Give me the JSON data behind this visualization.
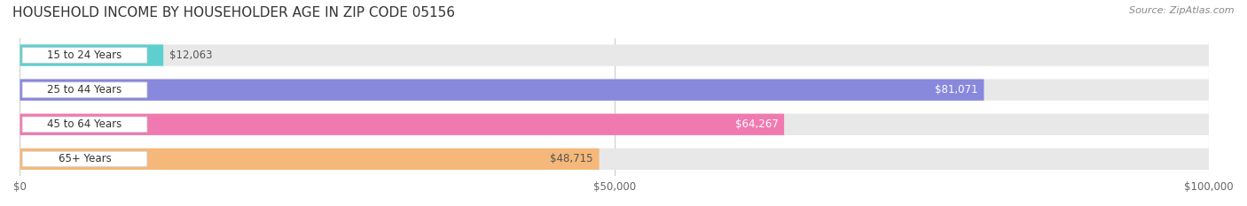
{
  "title": "HOUSEHOLD INCOME BY HOUSEHOLDER AGE IN ZIP CODE 05156",
  "source": "Source: ZipAtlas.com",
  "categories": [
    "15 to 24 Years",
    "25 to 44 Years",
    "45 to 64 Years",
    "65+ Years"
  ],
  "values": [
    12063,
    81071,
    64267,
    48715
  ],
  "labels": [
    "$12,063",
    "$81,071",
    "$64,267",
    "$48,715"
  ],
  "bar_colors": [
    "#5ecfcf",
    "#8888dd",
    "#f07ab0",
    "#f5b87a"
  ],
  "bar_bg_color": "#f0f0f0",
  "label_colors": [
    "#555555",
    "#ffffff",
    "#ffffff",
    "#555555"
  ],
  "xlim": [
    0,
    100000
  ],
  "xticks": [
    0,
    50000,
    100000
  ],
  "xticklabels": [
    "$0",
    "$50,000",
    "$100,000"
  ],
  "background_color": "#ffffff",
  "title_fontsize": 11,
  "source_fontsize": 8,
  "bar_height": 0.62,
  "bar_gap": 0.18
}
